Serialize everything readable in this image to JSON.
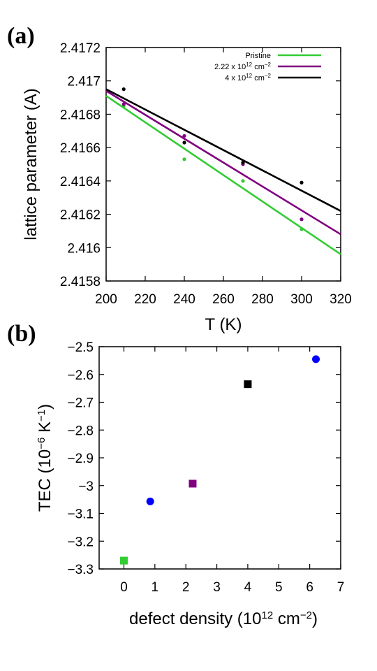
{
  "chart_data": [
    {
      "panel_label": "(a)",
      "type": "scatter",
      "xlabel": "T (K)",
      "ylabel": "lattice parameter (A)",
      "xlim": [
        200,
        320
      ],
      "ylim": [
        2.4158,
        2.4172
      ],
      "xticks": [
        200,
        220,
        240,
        260,
        280,
        300,
        320
      ],
      "yticks": [
        2.4158,
        2.416,
        2.4162,
        2.4164,
        2.4166,
        2.4168,
        2.417,
        2.4172
      ],
      "ytick_labels": [
        "2.4158",
        "2.416",
        "2.4162",
        "2.4164",
        "2.4166",
        "2.4168",
        "2.417",
        "2.4172"
      ],
      "legend_position": "top-right",
      "grid": false,
      "series": [
        {
          "name": "Pristine",
          "legend_base": "Pristine",
          "legend_exp": "",
          "legend_unit": "",
          "legend_unit_exp": "",
          "color": "#33cc33",
          "points": [
            [
              209,
              2.41685
            ],
            [
              240,
              2.41653
            ],
            [
              270,
              2.4164
            ],
            [
              300,
              2.41611
            ]
          ],
          "fit": [
            [
              200,
              2.41691
            ],
            [
              320,
              2.41596
            ]
          ]
        },
        {
          "name": "2.22 x 10^12 cm^-2",
          "legend_base": "2.22 x 10",
          "legend_exp": "12",
          "legend_unit": "cm",
          "legend_unit_exp": "−2",
          "color": "#800080",
          "points": [
            [
              209,
              2.41686
            ],
            [
              240,
              2.41667
            ],
            [
              270,
              2.4165
            ],
            [
              300,
              2.41617
            ]
          ],
          "fit": [
            [
              200,
              2.41694
            ],
            [
              320,
              2.41608
            ]
          ]
        },
        {
          "name": "4 x 10^12 cm^-2",
          "legend_base": "4 x 10",
          "legend_exp": "12",
          "legend_unit": "cm",
          "legend_unit_exp": "−2",
          "color": "#000000",
          "points": [
            [
              209,
              2.41695
            ],
            [
              240,
              2.41663
            ],
            [
              270,
              2.41651
            ],
            [
              300,
              2.41639
            ]
          ],
          "fit": [
            [
              200,
              2.41695
            ],
            [
              320,
              2.41622
            ]
          ]
        }
      ]
    },
    {
      "panel_label": "(b)",
      "type": "scatter",
      "xlabel_base": "defect density (10",
      "xlabel_exp": "12",
      "xlabel_unit": " cm",
      "xlabel_unit_exp": "−2",
      "xlabel_close": ")",
      "ylabel_base": "TEC (10",
      "ylabel_exp": "−6",
      "ylabel_unit": " K",
      "ylabel_unit_exp": "−1",
      "ylabel_close": ")",
      "xlim": [
        -0.8,
        7
      ],
      "ylim": [
        -3.3,
        -2.5
      ],
      "xticks": [
        0,
        1,
        2,
        3,
        4,
        5,
        6,
        7
      ],
      "yticks": [
        -3.3,
        -3.2,
        -3.1,
        -3.0,
        -2.9,
        -2.8,
        -2.7,
        -2.6,
        -2.5
      ],
      "ytick_labels": [
        "−3.3",
        "−3.2",
        "−3.1",
        "−3",
        "−2.9",
        "−2.8",
        "−2.7",
        "−2.6",
        "−2.5"
      ],
      "grid": false,
      "points": [
        {
          "x": 0.0,
          "y": -3.27,
          "marker": "square",
          "color": "#33cc33"
        },
        {
          "x": 0.85,
          "y": -3.057,
          "marker": "circle",
          "color": "#0000ff"
        },
        {
          "x": 2.22,
          "y": -2.993,
          "marker": "square",
          "color": "#800080"
        },
        {
          "x": 4.0,
          "y": -2.635,
          "marker": "square",
          "color": "#000000"
        },
        {
          "x": 6.2,
          "y": -2.545,
          "marker": "circle",
          "color": "#0000ff"
        }
      ]
    }
  ]
}
